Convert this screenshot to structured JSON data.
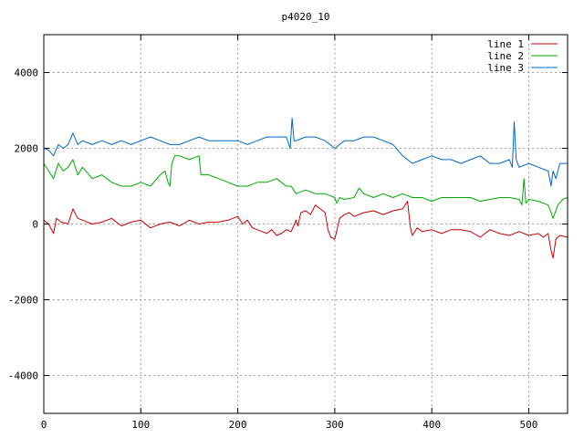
{
  "chart_data": {
    "type": "line",
    "title": "p4020_10",
    "xlabel": "",
    "ylabel": "",
    "xlim": [
      0,
      540
    ],
    "ylim": [
      -5000,
      5000
    ],
    "xticks": [
      0,
      100,
      200,
      300,
      400,
      500
    ],
    "yticks": [
      -4000,
      -2000,
      0,
      2000,
      4000
    ],
    "grid": true,
    "legend_position": "top-right",
    "series": [
      {
        "name": "line 1",
        "color": "#cc0000",
        "x": [
          0,
          5,
          10,
          13,
          18,
          25,
          30,
          35,
          40,
          50,
          60,
          70,
          80,
          90,
          100,
          110,
          120,
          130,
          140,
          150,
          160,
          170,
          180,
          190,
          200,
          205,
          210,
          215,
          220,
          225,
          230,
          235,
          240,
          245,
          250,
          255,
          260,
          262,
          265,
          270,
          275,
          280,
          285,
          290,
          293,
          296,
          300,
          305,
          310,
          315,
          320,
          330,
          340,
          350,
          360,
          370,
          375,
          378,
          380,
          385,
          390,
          400,
          410,
          420,
          430,
          440,
          450,
          460,
          470,
          480,
          490,
          500,
          510,
          515,
          520,
          523,
          525,
          528,
          532,
          540
        ],
        "y": [
          100,
          0,
          -250,
          150,
          50,
          0,
          400,
          150,
          100,
          0,
          50,
          150,
          -50,
          50,
          100,
          -100,
          0,
          50,
          -50,
          100,
          0,
          50,
          50,
          100,
          200,
          0,
          100,
          -100,
          -150,
          -200,
          -250,
          -150,
          -300,
          -250,
          -150,
          -200,
          100,
          -50,
          300,
          350,
          250,
          500,
          400,
          300,
          -150,
          -350,
          -400,
          150,
          250,
          300,
          200,
          300,
          350,
          250,
          350,
          400,
          600,
          -100,
          -300,
          -100,
          -200,
          -150,
          -250,
          -150,
          -150,
          -200,
          -350,
          -150,
          -250,
          -300,
          -200,
          -300,
          -250,
          -350,
          -250,
          -700,
          -900,
          -400,
          -300,
          -350
        ]
      },
      {
        "name": "line 2",
        "color": "#00aa00",
        "x": [
          0,
          5,
          10,
          15,
          20,
          25,
          30,
          35,
          40,
          50,
          60,
          70,
          80,
          90,
          100,
          110,
          120,
          125,
          128,
          130,
          132,
          135,
          140,
          150,
          160,
          162,
          165,
          170,
          180,
          190,
          200,
          210,
          220,
          230,
          240,
          250,
          255,
          260,
          270,
          280,
          290,
          300,
          302,
          305,
          310,
          320,
          325,
          330,
          340,
          350,
          360,
          370,
          380,
          390,
          400,
          410,
          420,
          430,
          440,
          450,
          460,
          470,
          480,
          490,
          493,
          495,
          497,
          500,
          510,
          520,
          523,
          525,
          530,
          535,
          540
        ],
        "y": [
          1600,
          1400,
          1200,
          1600,
          1400,
          1500,
          1700,
          1300,
          1500,
          1200,
          1300,
          1100,
          1000,
          1000,
          1100,
          1000,
          1300,
          1400,
          1100,
          1000,
          1600,
          1800,
          1800,
          1700,
          1800,
          1300,
          1300,
          1300,
          1200,
          1100,
          1000,
          1000,
          1100,
          1100,
          1200,
          1000,
          1000,
          800,
          900,
          800,
          800,
          700,
          550,
          700,
          650,
          700,
          950,
          800,
          700,
          800,
          700,
          800,
          700,
          700,
          600,
          700,
          700,
          700,
          700,
          600,
          650,
          700,
          700,
          650,
          500,
          1200,
          550,
          650,
          600,
          500,
          300,
          150,
          500,
          650,
          700
        ]
      },
      {
        "name": "line 3",
        "color": "#0066cc",
        "x": [
          0,
          5,
          10,
          15,
          20,
          25,
          30,
          35,
          40,
          50,
          60,
          70,
          80,
          90,
          100,
          110,
          120,
          130,
          140,
          150,
          160,
          170,
          180,
          190,
          200,
          210,
          220,
          230,
          240,
          250,
          254,
          256,
          258,
          260,
          270,
          280,
          290,
          300,
          305,
          310,
          320,
          330,
          340,
          350,
          360,
          370,
          380,
          390,
          400,
          410,
          420,
          430,
          440,
          450,
          460,
          470,
          480,
          483,
          485,
          487,
          490,
          500,
          510,
          520,
          523,
          525,
          528,
          532,
          540
        ],
        "y": [
          2000,
          1950,
          1800,
          2100,
          2000,
          2100,
          2400,
          2100,
          2200,
          2100,
          2200,
          2100,
          2200,
          2100,
          2200,
          2300,
          2200,
          2100,
          2100,
          2200,
          2300,
          2200,
          2200,
          2200,
          2200,
          2100,
          2200,
          2300,
          2300,
          2300,
          2000,
          2800,
          2200,
          2200,
          2300,
          2300,
          2200,
          2000,
          2100,
          2200,
          2200,
          2300,
          2300,
          2200,
          2100,
          1800,
          1600,
          1700,
          1800,
          1700,
          1700,
          1600,
          1700,
          1800,
          1600,
          1600,
          1700,
          1500,
          2700,
          1700,
          1500,
          1600,
          1500,
          1400,
          1000,
          1400,
          1200,
          1600,
          1600
        ]
      }
    ]
  }
}
